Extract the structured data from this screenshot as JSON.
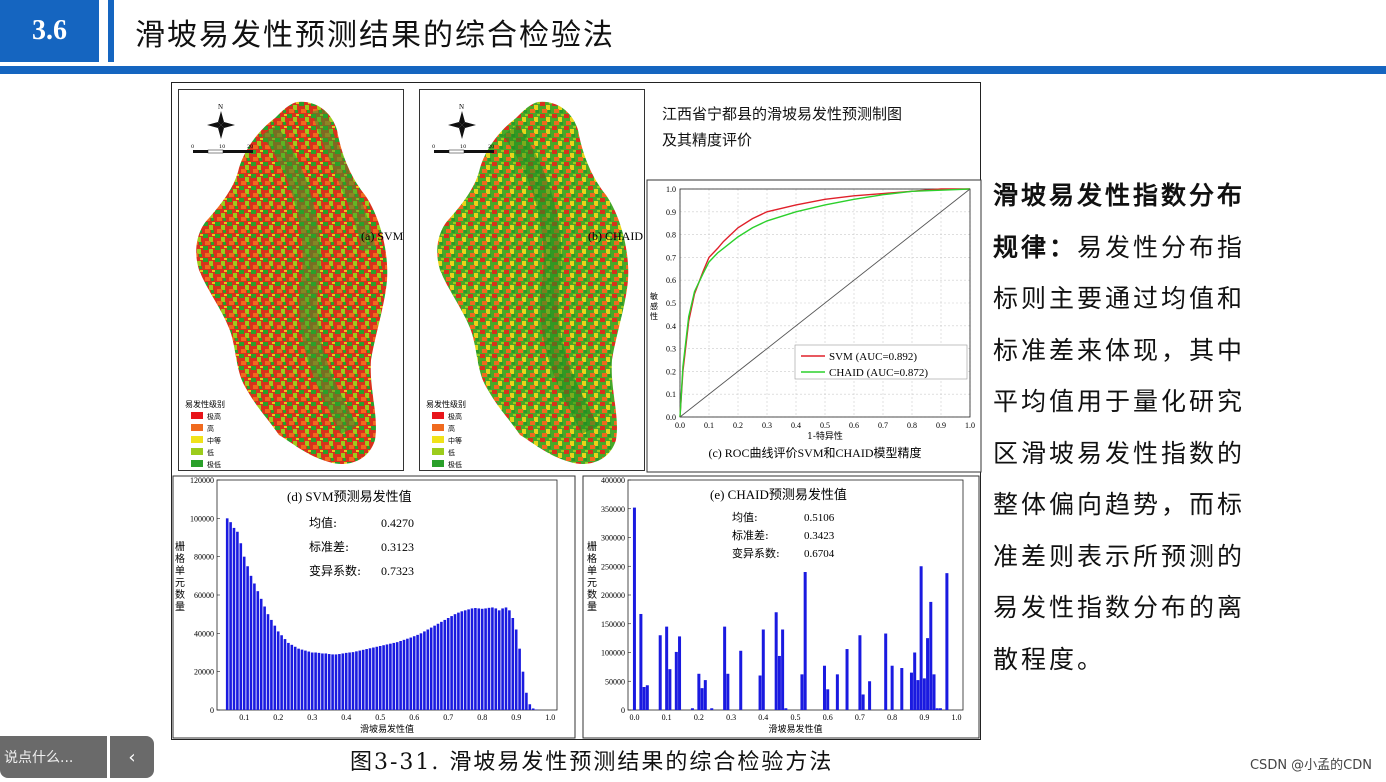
{
  "header": {
    "number": "3.6",
    "title": "滑坡易发性预测结果的综合检验法"
  },
  "figure": {
    "title_line1": "江西省宁都县的滑坡易发性预测制图",
    "title_line2": "及其精度评价",
    "map_svm_label": "(a) SVM",
    "map_chaid_label": "(b) CHAID",
    "legend_title": "易发性级别",
    "legend_items": [
      {
        "label": "极高",
        "color": "#e8141a"
      },
      {
        "label": "高",
        "color": "#f06a1e"
      },
      {
        "label": "中等",
        "color": "#f0e21a"
      },
      {
        "label": "低",
        "color": "#9ccc1c"
      },
      {
        "label": "极低",
        "color": "#2aa02a"
      }
    ],
    "compass_letter": "N",
    "scale_ticks": [
      "0",
      "10",
      "20"
    ],
    "caption": "图3-31. 滑坡易发性预测结果的综合检验方法"
  },
  "right_text": {
    "heading": "滑坡易发性指数分布规律：",
    "body": "易发性分布指标则主要通过均值和标准差来体现，其中平均值用于量化研究区滑坡易发性指数的整体偏向趋势，而标准差则表示所预测的易发性指数分布的离散程度。"
  },
  "chat": {
    "placeholder": "说点什么...",
    "toggle_icon": "‹"
  },
  "watermark": "CSDN @小孟的CDN",
  "chart_data": [
    {
      "type": "line",
      "title": "(c) ROC曲线评价SVM和CHAID模型精度",
      "xlabel": "1-特异性",
      "ylabel": "敏感性",
      "xlim": [
        0,
        1
      ],
      "ylim": [
        0,
        1
      ],
      "ticks": [
        "0.0",
        "0.1",
        "0.2",
        "0.3",
        "0.4",
        "0.5",
        "0.6",
        "0.7",
        "0.8",
        "0.9",
        "1.0"
      ],
      "grid": true,
      "legend_position": "bottom-right",
      "series": [
        {
          "name": "SVM (AUC=0.892)",
          "color": "#e0202a",
          "x": [
            0,
            0.01,
            0.03,
            0.05,
            0.08,
            0.1,
            0.13,
            0.15,
            0.2,
            0.25,
            0.3,
            0.4,
            0.5,
            0.6,
            0.7,
            0.8,
            0.9,
            1.0
          ],
          "y": [
            0,
            0.2,
            0.42,
            0.54,
            0.64,
            0.7,
            0.74,
            0.77,
            0.83,
            0.87,
            0.9,
            0.93,
            0.955,
            0.97,
            0.98,
            0.99,
            1.0,
            1.0
          ]
        },
        {
          "name": "CHAID (AUC=0.872)",
          "color": "#2cd02c",
          "x": [
            0,
            0.01,
            0.03,
            0.05,
            0.08,
            0.1,
            0.13,
            0.15,
            0.2,
            0.25,
            0.3,
            0.4,
            0.5,
            0.6,
            0.7,
            0.8,
            0.9,
            1.0
          ],
          "y": [
            0,
            0.22,
            0.44,
            0.55,
            0.63,
            0.68,
            0.72,
            0.74,
            0.79,
            0.83,
            0.86,
            0.9,
            0.93,
            0.955,
            0.975,
            0.99,
            0.995,
            1.0
          ]
        },
        {
          "name": "",
          "color": "#555555",
          "x": [
            0,
            1
          ],
          "y": [
            0,
            1
          ]
        }
      ]
    },
    {
      "type": "bar",
      "title": "(d) SVM预测易发性值",
      "stats": [
        {
          "label": "均值:",
          "value": "0.4270"
        },
        {
          "label": "标准差:",
          "value": "0.3123"
        },
        {
          "label": "变异系数:",
          "value": "0.7323"
        }
      ],
      "xlabel": "滑坡易发性值",
      "ylabel": "栅格单元数量",
      "xlim": [
        0.02,
        1.02
      ],
      "ylim": [
        0,
        120000
      ],
      "xticks": [
        "0.1",
        "0.2",
        "0.3",
        "0.4",
        "0.5",
        "0.6",
        "0.7",
        "0.8",
        "0.9",
        "1.0"
      ],
      "yticks": [
        "0",
        "20000",
        "40000",
        "60000",
        "80000",
        "100000",
        "120000"
      ],
      "color": "#1a1ae0",
      "x": [
        0.05,
        0.06,
        0.07,
        0.08,
        0.09,
        0.1,
        0.11,
        0.12,
        0.13,
        0.14,
        0.15,
        0.16,
        0.17,
        0.18,
        0.19,
        0.2,
        0.21,
        0.22,
        0.23,
        0.24,
        0.25,
        0.26,
        0.27,
        0.28,
        0.29,
        0.3,
        0.31,
        0.32,
        0.33,
        0.34,
        0.35,
        0.36,
        0.37,
        0.38,
        0.39,
        0.4,
        0.41,
        0.42,
        0.43,
        0.44,
        0.45,
        0.46,
        0.47,
        0.48,
        0.49,
        0.5,
        0.51,
        0.52,
        0.53,
        0.54,
        0.55,
        0.56,
        0.57,
        0.58,
        0.59,
        0.6,
        0.61,
        0.62,
        0.63,
        0.64,
        0.65,
        0.66,
        0.67,
        0.68,
        0.69,
        0.7,
        0.71,
        0.72,
        0.73,
        0.74,
        0.75,
        0.76,
        0.77,
        0.78,
        0.79,
        0.8,
        0.81,
        0.82,
        0.83,
        0.84,
        0.85,
        0.86,
        0.87,
        0.88,
        0.89,
        0.9,
        0.91,
        0.92,
        0.93,
        0.94,
        0.95,
        0.96,
        0.97
      ],
      "values": [
        100000,
        98000,
        95000,
        93000,
        87000,
        80000,
        75000,
        70000,
        66000,
        62000,
        58000,
        54000,
        50000,
        47000,
        44000,
        41000,
        39000,
        37000,
        35000,
        34000,
        33000,
        32000,
        31500,
        31000,
        30500,
        30000,
        30000,
        29800,
        29500,
        29500,
        29200,
        29000,
        29000,
        29200,
        29500,
        29800,
        30000,
        30200,
        30600,
        31000,
        31400,
        31800,
        32200,
        32600,
        33000,
        33400,
        33800,
        34200,
        34600,
        35000,
        35400,
        36000,
        36600,
        37200,
        37800,
        38500,
        39200,
        40000,
        41000,
        42000,
        43000,
        44000,
        45000,
        46000,
        47000,
        48000,
        49000,
        50000,
        50800,
        51500,
        52000,
        52500,
        53000,
        53200,
        53000,
        52800,
        53000,
        53300,
        53500,
        53000,
        52000,
        53000,
        53500,
        52000,
        48000,
        42000,
        32000,
        20000,
        9000,
        3000,
        800,
        200,
        50
      ]
    },
    {
      "type": "bar",
      "title": "(e) CHAID预测易发性值",
      "stats": [
        {
          "label": "均值:",
          "value": "0.5106"
        },
        {
          "label": "标准差:",
          "value": "0.3423"
        },
        {
          "label": "变异系数:",
          "value": "0.6704"
        }
      ],
      "xlabel": "滑坡易发性值",
      "ylabel": "栅格单元数量",
      "xlim": [
        -0.02,
        1.02
      ],
      "ylim": [
        0,
        400000
      ],
      "xticks": [
        "0.0",
        "0.1",
        "0.2",
        "0.3",
        "0.4",
        "0.5",
        "0.6",
        "0.7",
        "0.8",
        "0.9",
        "1.0"
      ],
      "yticks": [
        "0",
        "50000",
        "100000",
        "150000",
        "200000",
        "250000",
        "300000",
        "350000",
        "400000"
      ],
      "color": "#1a1ae0",
      "x": [
        0.0,
        0.02,
        0.03,
        0.04,
        0.08,
        0.1,
        0.11,
        0.13,
        0.14,
        0.18,
        0.2,
        0.21,
        0.22,
        0.24,
        0.28,
        0.29,
        0.33,
        0.39,
        0.4,
        0.44,
        0.45,
        0.46,
        0.47,
        0.52,
        0.53,
        0.59,
        0.6,
        0.63,
        0.66,
        0.7,
        0.71,
        0.73,
        0.78,
        0.8,
        0.83,
        0.86,
        0.87,
        0.88,
        0.89,
        0.9,
        0.91,
        0.92,
        0.93,
        0.94,
        0.95,
        0.97
      ],
      "values": [
        352000,
        167000,
        40000,
        43000,
        130000,
        145000,
        71000,
        101000,
        128000,
        3000,
        63000,
        38000,
        52000,
        3000,
        145000,
        63000,
        103000,
        60000,
        140000,
        170000,
        94000,
        140000,
        3000,
        62000,
        240000,
        77000,
        36000,
        62000,
        106000,
        130000,
        27000,
        50000,
        133000,
        77000,
        73000,
        65000,
        100000,
        52000,
        250000,
        55000,
        125000,
        188000,
        62000,
        3000,
        3000,
        238000
      ]
    }
  ]
}
